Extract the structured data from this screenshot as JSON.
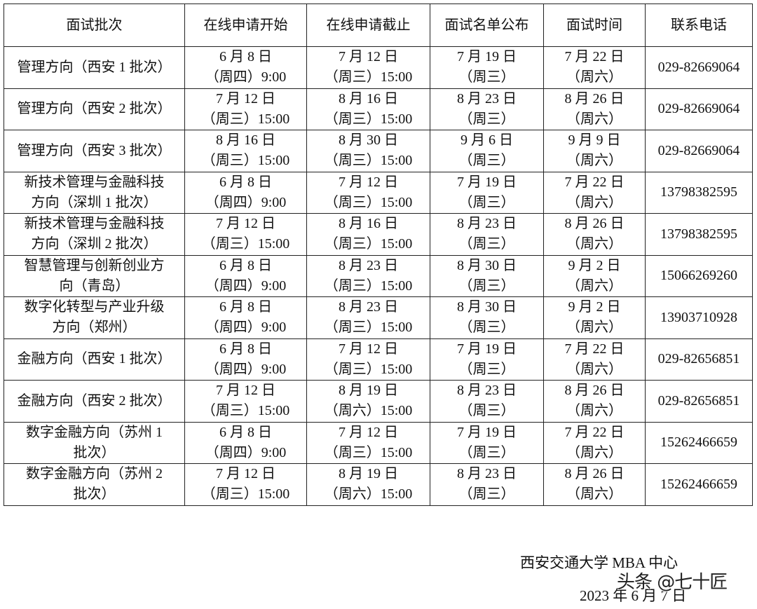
{
  "table": {
    "headers": [
      "面试批次",
      "在线申请开始",
      "在线申请截止",
      "面试名单公布",
      "面试时间",
      "联系电话"
    ],
    "rows": [
      {
        "batch": [
          "管理方向（西安 1 批次）"
        ],
        "start": [
          "6 月 8 日",
          "（周四）9:00"
        ],
        "end": [
          "7 月 12 日",
          "（周三）15:00"
        ],
        "list": [
          "7 月 19 日",
          "（周三）"
        ],
        "interview": [
          "7 月 22 日",
          "（周六）"
        ],
        "phone": "029-82669064"
      },
      {
        "batch": [
          "管理方向（西安 2 批次）"
        ],
        "start": [
          "7 月 12 日",
          "（周三）15:00"
        ],
        "end": [
          "8 月 16 日",
          "（周三）15:00"
        ],
        "list": [
          "8 月 23 日",
          "（周三）"
        ],
        "interview": [
          "8 月 26 日",
          "（周六）"
        ],
        "phone": "029-82669064"
      },
      {
        "batch": [
          "管理方向（西安 3 批次）"
        ],
        "start": [
          "8 月 16 日",
          "（周三）15:00"
        ],
        "end": [
          "8 月 30 日",
          "（周三）15:00"
        ],
        "list": [
          "9 月 6 日",
          "（周三）"
        ],
        "interview": [
          "9 月 9 日",
          "（周六）"
        ],
        "phone": "029-82669064"
      },
      {
        "batch": [
          "新技术管理与金融科技",
          "方向（深圳 1 批次）"
        ],
        "start": [
          "6 月 8 日",
          "（周四）9:00"
        ],
        "end": [
          "7 月 12 日",
          "（周三）15:00"
        ],
        "list": [
          "7 月 19 日",
          "（周三）"
        ],
        "interview": [
          "7 月 22 日",
          "（周六）"
        ],
        "phone": "13798382595"
      },
      {
        "batch": [
          "新技术管理与金融科技",
          "方向（深圳 2 批次）"
        ],
        "start": [
          "7 月 12 日",
          "（周三）15:00"
        ],
        "end": [
          "8 月 16 日",
          "（周三）15:00"
        ],
        "list": [
          "8 月 23 日",
          "（周三）"
        ],
        "interview": [
          "8 月 26 日",
          "（周六）"
        ],
        "phone": "13798382595"
      },
      {
        "batch": [
          "智慧管理与创新创业方",
          "向（青岛）"
        ],
        "start": [
          "6 月 8 日",
          "（周四）9:00"
        ],
        "end": [
          "8 月 23 日",
          "（周三）15:00"
        ],
        "list": [
          "8 月 30 日",
          "（周三）"
        ],
        "interview": [
          "9 月 2 日",
          "（周六）"
        ],
        "phone": "15066269260"
      },
      {
        "batch": [
          "数字化转型与产业升级",
          "方向（郑州）"
        ],
        "start": [
          "6 月 8 日",
          "（周四）9:00"
        ],
        "end": [
          "8 月 23 日",
          "（周三）15:00"
        ],
        "list": [
          "8 月 30 日",
          "（周三）"
        ],
        "interview": [
          "9 月 2 日",
          "（周六）"
        ],
        "phone": "13903710928"
      },
      {
        "batch": [
          "金融方向（西安 1 批次）"
        ],
        "start": [
          "6 月 8 日",
          "（周四）9:00"
        ],
        "end": [
          "7 月 12 日",
          "（周三）15:00"
        ],
        "list": [
          "7 月 19 日",
          "（周三）"
        ],
        "interview": [
          "7 月 22 日",
          "（周六）"
        ],
        "phone": "029-82656851"
      },
      {
        "batch": [
          "金融方向（西安 2 批次）"
        ],
        "start": [
          "7 月 12 日",
          "（周三）15:00"
        ],
        "end": [
          "8 月 19 日",
          "（周六）15:00"
        ],
        "list": [
          "8 月 23 日",
          "（周三）"
        ],
        "interview": [
          "8 月 26 日",
          "（周六）"
        ],
        "phone": "029-82656851"
      },
      {
        "batch": [
          "数字金融方向（苏州 1",
          "批次）"
        ],
        "start": [
          "6 月 8 日",
          "（周四）9:00"
        ],
        "end": [
          "7 月 12 日",
          "（周三）15:00"
        ],
        "list": [
          "7 月 19 日",
          "（周三）"
        ],
        "interview": [
          "7 月 22 日",
          "（周六）"
        ],
        "phone": "15262466659"
      },
      {
        "batch": [
          "数字金融方向（苏州 2",
          "批次）"
        ],
        "start": [
          "7 月 12 日",
          "（周三）15:00"
        ],
        "end": [
          "8 月 19 日",
          "（周六）15:00"
        ],
        "list": [
          "8 月 23 日",
          "（周三）"
        ],
        "interview": [
          "8 月 26 日",
          "（周六）"
        ],
        "phone": "15262466659"
      }
    ]
  },
  "footer": {
    "org": "西安交通大学 MBA 中心",
    "date": "2023 年 6 月 7 日"
  },
  "watermark": "头条 @七十匠"
}
